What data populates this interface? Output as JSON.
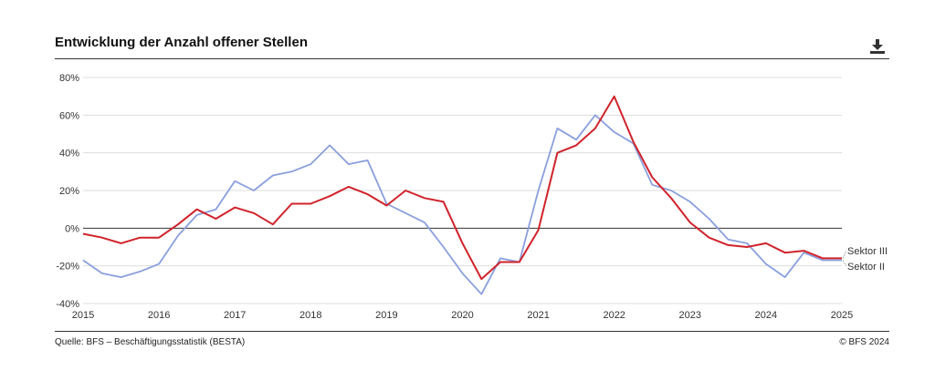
{
  "header": {
    "title": "Entwicklung der Anzahl offener Stellen",
    "download_icon": "download-icon"
  },
  "footer": {
    "source": "Quelle: BFS – Beschäftigungsstatistik (BESTA)",
    "copyright": "© BFS 2024"
  },
  "colors": {
    "sektor_ii": "#8a9fdd",
    "sektor_iii": "#d0232b",
    "grid": "#dddddd",
    "zero_line": "#333333"
  },
  "chart_data": {
    "type": "line",
    "title": "Entwicklung der Anzahl offener Stellen",
    "xlabel": "",
    "ylabel": "",
    "xlim": [
      2015,
      2025
    ],
    "ylim": [
      -40,
      80
    ],
    "x_ticks": [
      "2015",
      "2016",
      "2017",
      "2018",
      "2019",
      "2020",
      "2021",
      "2022",
      "2023",
      "2024",
      "2025"
    ],
    "y_ticks": [
      "80%",
      "60%",
      "40%",
      "20%",
      "0%",
      "-20%",
      "-40%"
    ],
    "y_tick_values": [
      80,
      60,
      40,
      20,
      0,
      -20,
      -40
    ],
    "grid": true,
    "legend": "labels at line ends (right)",
    "x": [
      2015.0,
      2015.25,
      2015.5,
      2015.75,
      2016.0,
      2016.25,
      2016.5,
      2016.75,
      2017.0,
      2017.25,
      2017.5,
      2017.75,
      2018.0,
      2018.25,
      2018.5,
      2018.75,
      2019.0,
      2019.25,
      2019.5,
      2019.75,
      2020.0,
      2020.25,
      2020.5,
      2020.75,
      2021.0,
      2021.25,
      2021.5,
      2021.75,
      2022.0,
      2022.25,
      2022.5,
      2022.75,
      2023.0,
      2023.25,
      2023.5,
      2023.75,
      2024.0,
      2024.25,
      2024.5,
      2024.75,
      2025.0
    ],
    "series": [
      {
        "name": "Sektor II",
        "color": "#8a9fdd",
        "values": [
          -17,
          -24,
          -26,
          -23,
          -19,
          -4,
          7,
          10,
          25,
          20,
          28,
          30,
          34,
          44,
          34,
          36,
          13,
          8,
          3,
          -10,
          -24,
          -35,
          -16,
          -18,
          20,
          53,
          47,
          60,
          51,
          45,
          23,
          20,
          14,
          5,
          -6,
          -8,
          -19,
          -26,
          -13,
          -17,
          -17
        ]
      },
      {
        "name": "Sektor III",
        "color": "#d0232b",
        "values": [
          -3,
          -5,
          -8,
          -5,
          -5,
          2,
          10,
          5,
          11,
          8,
          2,
          13,
          13,
          17,
          22,
          18,
          12,
          20,
          16,
          14,
          -8,
          -27,
          -18,
          -18,
          -1,
          40,
          44,
          53,
          70,
          46,
          27,
          16,
          3,
          -5,
          -9,
          -10,
          -8,
          -13,
          -12,
          -16,
          -16
        ]
      }
    ]
  }
}
